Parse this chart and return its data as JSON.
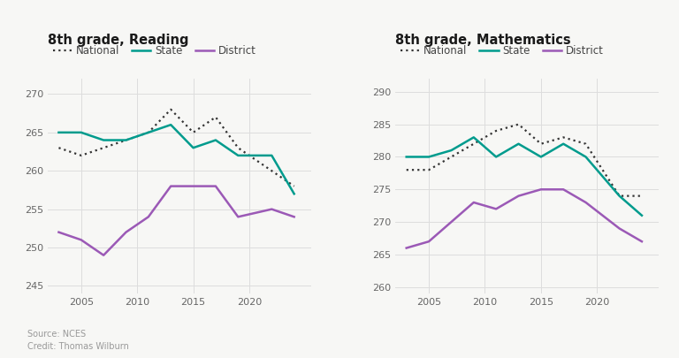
{
  "reading": {
    "title": "8th grade, Reading",
    "years": [
      2003,
      2005,
      2007,
      2009,
      2011,
      2013,
      2015,
      2017,
      2019,
      2022,
      2024
    ],
    "national": [
      263,
      262,
      263,
      264,
      265,
      268,
      265,
      267,
      263,
      260,
      258
    ],
    "state": [
      265,
      265,
      264,
      264,
      265,
      266,
      263,
      264,
      262,
      262,
      257
    ],
    "district": [
      252,
      251,
      249,
      252,
      254,
      258,
      258,
      258,
      254,
      255,
      254
    ],
    "ylim": [
      244,
      272
    ],
    "yticks": [
      245,
      250,
      255,
      260,
      265,
      270
    ]
  },
  "math": {
    "title": "8th grade, Mathematics",
    "years": [
      2003,
      2005,
      2007,
      2009,
      2011,
      2013,
      2015,
      2017,
      2019,
      2022,
      2024
    ],
    "national": [
      278,
      278,
      280,
      282,
      284,
      285,
      282,
      283,
      282,
      274,
      274
    ],
    "state": [
      280,
      280,
      281,
      283,
      280,
      282,
      280,
      282,
      280,
      274,
      271
    ],
    "district": [
      266,
      267,
      270,
      273,
      272,
      274,
      275,
      275,
      273,
      269,
      267
    ],
    "ylim": [
      259,
      292
    ],
    "yticks": [
      260,
      265,
      270,
      275,
      280,
      285,
      290
    ]
  },
  "national_color": "#333333",
  "state_color": "#009B8D",
  "district_color": "#9B59B6",
  "bg_color": "#f7f7f5",
  "grid_color": "#dddddd",
  "source_text": "Source: NCES\nCredit: Thomas Wilburn"
}
